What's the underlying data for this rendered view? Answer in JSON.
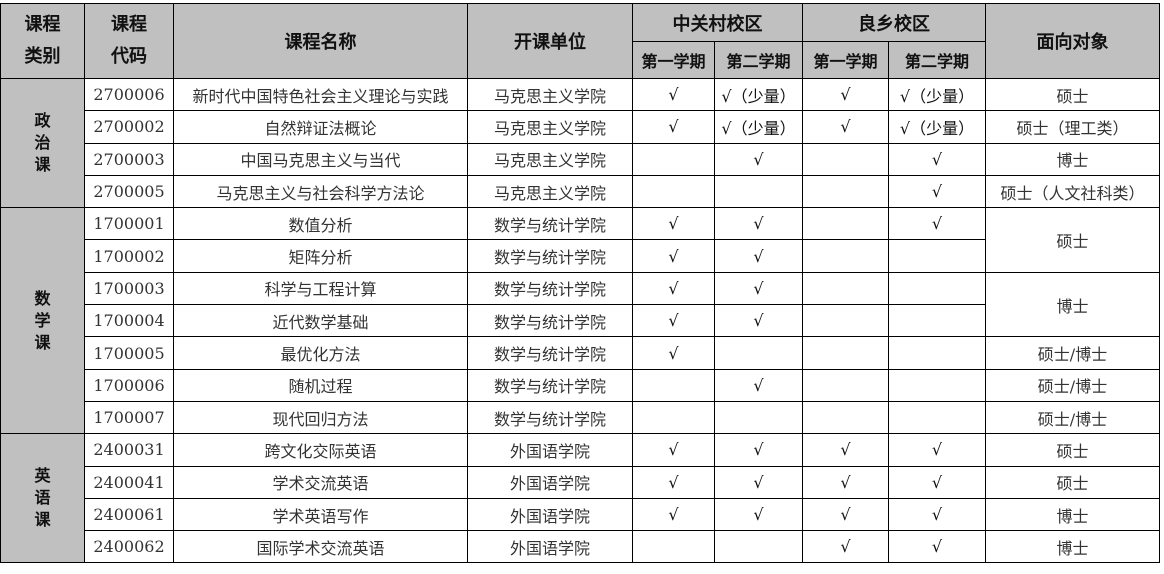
{
  "header": {
    "category": "课程\n类别",
    "code": "课程\n代码",
    "name": "课程名称",
    "dept": "开课单位",
    "campus1": "中关村校区",
    "campus2": "良乡校区",
    "term1": "第一学期",
    "term2": "第二学期",
    "audience": "面向对象"
  },
  "groups": [
    {
      "category": "政\n治\n课",
      "rows": [
        {
          "code": "2700006",
          "name": "新时代中国特色社会主义理论与实践",
          "dept": "马克思主义学院",
          "z1": "√",
          "z2": "√（少量）",
          "l1": "√",
          "l2": "√（少量）",
          "audience": "硕士",
          "span": 1
        },
        {
          "code": "2700002",
          "name": "自然辩证法概论",
          "dept": "马克思主义学院",
          "z1": "√",
          "z2": "√（少量）",
          "l1": "√",
          "l2": "√（少量）",
          "audience": "硕士（理工类）",
          "span": 1
        },
        {
          "code": "2700003",
          "name": "中国马克思主义与当代",
          "dept": "马克思主义学院",
          "z1": "",
          "z2": "√",
          "l1": "",
          "l2": "√",
          "audience": "博士",
          "span": 1
        },
        {
          "code": "2700005",
          "name": "马克思主义与社会科学方法论",
          "dept": "马克思主义学院",
          "z1": "",
          "z2": "",
          "l1": "",
          "l2": "√",
          "audience": "硕士（人文社科类）",
          "span": 1
        }
      ]
    },
    {
      "category": "数\n学\n课",
      "rows": [
        {
          "code": "1700001",
          "name": "数值分析",
          "dept": "数学与统计学院",
          "z1": "√",
          "z2": "√",
          "l1": "",
          "l2": "√",
          "audience": "硕士",
          "span": 2
        },
        {
          "code": "1700002",
          "name": "矩阵分析",
          "dept": "数学与统计学院",
          "z1": "√",
          "z2": "√",
          "l1": "",
          "l2": "",
          "audience": null,
          "span": 0
        },
        {
          "code": "1700003",
          "name": "科学与工程计算",
          "dept": "数学与统计学院",
          "z1": "√",
          "z2": "√",
          "l1": "",
          "l2": "",
          "audience": "博士",
          "span": 2
        },
        {
          "code": "1700004",
          "name": "近代数学基础",
          "dept": "数学与统计学院",
          "z1": "√",
          "z2": "√",
          "l1": "",
          "l2": "",
          "audience": null,
          "span": 0
        },
        {
          "code": "1700005",
          "name": "最优化方法",
          "dept": "数学与统计学院",
          "z1": "√",
          "z2": "",
          "l1": "",
          "l2": "",
          "audience": "硕士/博士",
          "span": 1
        },
        {
          "code": "1700006",
          "name": "随机过程",
          "dept": "数学与统计学院",
          "z1": "",
          "z2": "√",
          "l1": "",
          "l2": "",
          "audience": "硕士/博士",
          "span": 1
        },
        {
          "code": "1700007",
          "name": "现代回归方法",
          "dept": "数学与统计学院",
          "z1": "",
          "z2": "",
          "l1": "",
          "l2": "",
          "audience": "硕士/博士",
          "span": 1
        }
      ]
    },
    {
      "category": "英\n语\n课",
      "rows": [
        {
          "code": "2400031",
          "name": "跨文化交际英语",
          "dept": "外国语学院",
          "z1": "√",
          "z2": "√",
          "l1": "√",
          "l2": "√",
          "audience": "硕士",
          "span": 1
        },
        {
          "code": "2400041",
          "name": "学术交流英语",
          "dept": "外国语学院",
          "z1": "√",
          "z2": "√",
          "l1": "√",
          "l2": "√",
          "audience": "硕士",
          "span": 1
        },
        {
          "code": "2400061",
          "name": "学术英语写作",
          "dept": "外国语学院",
          "z1": "√",
          "z2": "√",
          "l1": "√",
          "l2": "√",
          "audience": "博士",
          "span": 1
        },
        {
          "code": "2400062",
          "name": "国际学术交流英语",
          "dept": "外国语学院",
          "z1": "",
          "z2": "",
          "l1": "√",
          "l2": "√",
          "audience": "博士",
          "span": 1
        }
      ]
    }
  ]
}
